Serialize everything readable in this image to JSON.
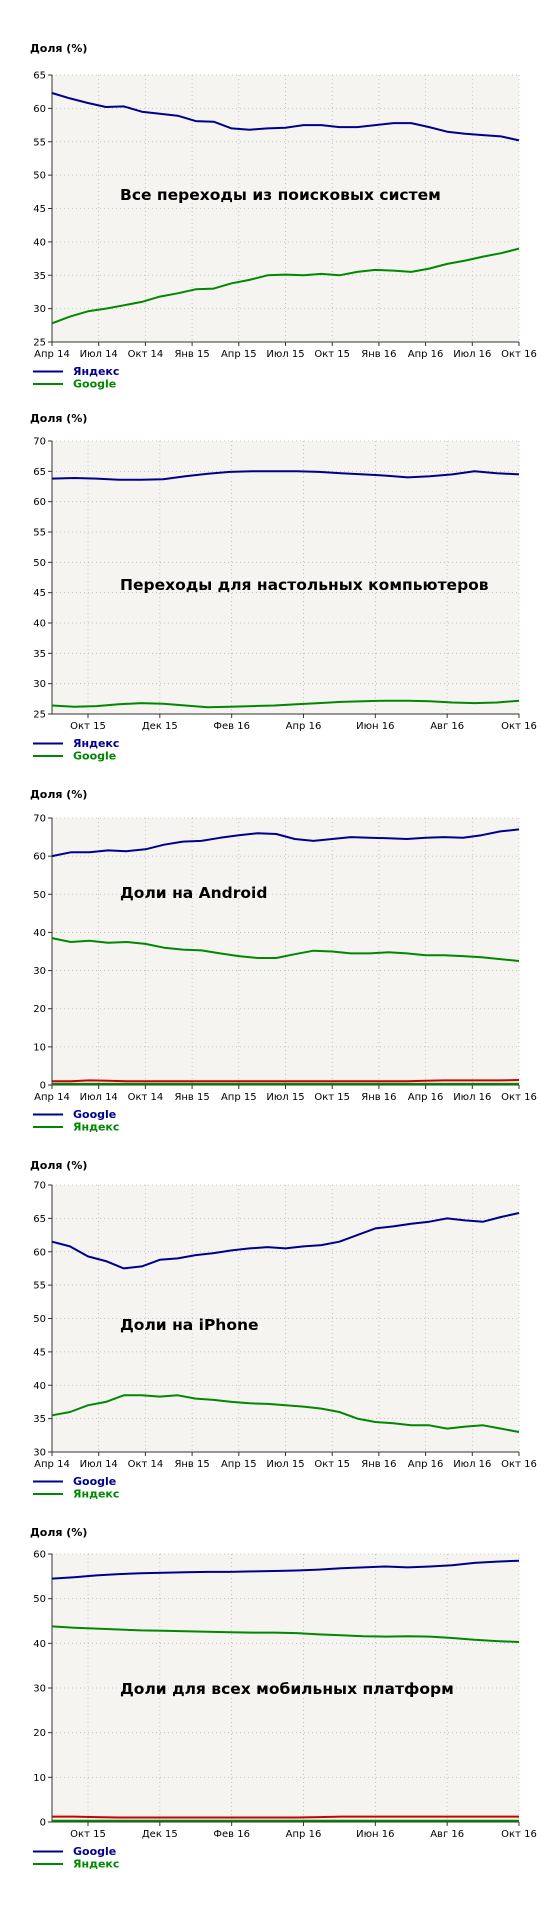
{
  "chart_data": [
    {
      "type": "line",
      "ylabel": "Доля (%)",
      "annotation": "Все переходы из поисковых систем",
      "ylim": [
        25,
        65
      ],
      "yticks": [
        25,
        30,
        35,
        40,
        45,
        50,
        55,
        60,
        65
      ],
      "xticks": [
        "Апр 14",
        "Июл 14",
        "Окт 14",
        "Янв 15",
        "Апр 15",
        "Июл 15",
        "Окт 15",
        "Янв 16",
        "Апр 16",
        "Июл 16",
        "Окт 16"
      ],
      "grid": true,
      "series": [
        {
          "name": "Яндекс",
          "color": "#00008b",
          "values": [
            62.3,
            61.5,
            60.8,
            60.2,
            60.3,
            59.5,
            59.2,
            58.9,
            58.1,
            58.0,
            57.0,
            56.8,
            57.0,
            57.1,
            57.5,
            57.5,
            57.2,
            57.2,
            57.5,
            57.8,
            57.8,
            57.2,
            56.5,
            56.2,
            56.0,
            55.8,
            55.2
          ]
        },
        {
          "name": "Google",
          "color": "#008800",
          "values": [
            27.8,
            28.8,
            29.6,
            30.0,
            30.5,
            31.0,
            31.8,
            32.3,
            32.9,
            33.0,
            33.8,
            34.3,
            35.0,
            35.1,
            35.0,
            35.2,
            35.0,
            35.5,
            35.8,
            35.7,
            35.5,
            36.0,
            36.7,
            37.2,
            37.8,
            38.3,
            39.0
          ]
        }
      ]
    },
    {
      "type": "line",
      "ylabel": "Доля (%)",
      "annotation": "Переходы для настольных компьютеров",
      "ylim": [
        25,
        70
      ],
      "yticks": [
        25,
        30,
        35,
        40,
        45,
        50,
        55,
        60,
        65,
        70
      ],
      "xticks": [
        "Окт 15",
        "Дек 15",
        "Фев 16",
        "Апр 16",
        "Июн 16",
        "Авг 16",
        "Окт 16"
      ],
      "grid": true,
      "series": [
        {
          "name": "Яндекс",
          "color": "#00008b",
          "values": [
            63.8,
            63.9,
            63.8,
            63.6,
            63.6,
            63.7,
            64.2,
            64.6,
            64.9,
            65.0,
            65.0,
            65.0,
            64.9,
            64.7,
            64.5,
            64.3,
            64.0,
            64.2,
            64.5,
            65.0,
            64.7,
            64.5
          ]
        },
        {
          "name": "Google",
          "color": "#008800",
          "values": [
            26.4,
            26.2,
            26.3,
            26.6,
            26.8,
            26.7,
            26.4,
            26.1,
            26.2,
            26.3,
            26.4,
            26.6,
            26.8,
            27.0,
            27.1,
            27.2,
            27.2,
            27.1,
            26.9,
            26.8,
            26.9,
            27.2
          ]
        }
      ]
    },
    {
      "type": "line",
      "ylabel": "Доля (%)",
      "annotation": "Доли на Android",
      "ylim": [
        0,
        70
      ],
      "yticks": [
        0,
        10,
        20,
        30,
        40,
        50,
        60,
        70
      ],
      "xticks": [
        "Апр 14",
        "Июл 14",
        "Окт 14",
        "Янв 15",
        "Апр 15",
        "Июл 15",
        "Окт 15",
        "Янв 16",
        "Апр 16",
        "Июл 16",
        "Окт 16"
      ],
      "grid": true,
      "series": [
        {
          "name": "Google",
          "color": "#00008b",
          "values": [
            60.0,
            61.0,
            61.0,
            61.5,
            61.3,
            61.8,
            63.0,
            63.8,
            64.0,
            64.8,
            65.5,
            66.0,
            65.8,
            64.5,
            64.0,
            64.5,
            65.0,
            64.8,
            64.7,
            64.5,
            64.8,
            65.0,
            64.8,
            65.5,
            66.5,
            67.0
          ]
        },
        {
          "name": "Яндекс",
          "color": "#008800",
          "values": [
            38.5,
            37.5,
            37.8,
            37.3,
            37.5,
            37.0,
            36.0,
            35.5,
            35.3,
            34.5,
            33.8,
            33.3,
            33.3,
            34.3,
            35.2,
            35.0,
            34.5,
            34.5,
            34.8,
            34.5,
            34.0,
            34.0,
            33.8,
            33.5,
            33.0,
            32.5
          ]
        },
        {
          "color": "#cc0000",
          "values": [
            1.0,
            1.0,
            1.2,
            1.1,
            1.0,
            1.0,
            1.0,
            1.0,
            1.0,
            1.0,
            1.0,
            1.0,
            1.0,
            1.0,
            1.0,
            1.0,
            1.0,
            1.0,
            1.0,
            1.0,
            1.1,
            1.2,
            1.2,
            1.2,
            1.2,
            1.3
          ]
        },
        {
          "color": "#008800",
          "values": [
            0.3,
            0.3,
            0.3,
            0.3,
            0.3,
            0.3,
            0.3,
            0.3,
            0.3,
            0.3,
            0.3,
            0.3,
            0.3,
            0.3,
            0.3,
            0.3,
            0.3,
            0.3,
            0.3,
            0.3,
            0.3,
            0.3,
            0.3,
            0.3,
            0.3,
            0.3
          ]
        }
      ]
    },
    {
      "type": "line",
      "ylabel": "Доля (%)",
      "annotation": "Доли на iPhone",
      "ylim": [
        30,
        70
      ],
      "yticks": [
        30,
        35,
        40,
        45,
        50,
        55,
        60,
        65,
        70
      ],
      "xticks": [
        "Апр 14",
        "Июл 14",
        "Окт 14",
        "Янв 15",
        "Апр 15",
        "Июл 15",
        "Окт 15",
        "Янв 16",
        "Апр 16",
        "Июл 16",
        "Окт 16"
      ],
      "grid": true,
      "series": [
        {
          "name": "Google",
          "color": "#00008b",
          "values": [
            61.5,
            60.8,
            59.3,
            58.6,
            57.5,
            57.8,
            58.8,
            59.0,
            59.5,
            59.8,
            60.2,
            60.5,
            60.7,
            60.5,
            60.8,
            61.0,
            61.5,
            62.5,
            63.5,
            63.8,
            64.2,
            64.5,
            65.0,
            64.7,
            64.5,
            65.2,
            65.8
          ]
        },
        {
          "name": "Яндекс",
          "color": "#008800",
          "values": [
            35.5,
            36.0,
            37.0,
            37.5,
            38.5,
            38.5,
            38.3,
            38.5,
            38.0,
            37.8,
            37.5,
            37.3,
            37.2,
            37.0,
            36.8,
            36.5,
            36.0,
            35.0,
            34.5,
            34.3,
            34.0,
            34.0,
            33.5,
            33.8,
            34.0,
            33.5,
            33.0
          ]
        }
      ]
    },
    {
      "type": "line",
      "ylabel": "Доля (%)",
      "annotation": "Доли для всех мобильных платформ",
      "ylim": [
        0,
        60
      ],
      "yticks": [
        0,
        10,
        20,
        30,
        40,
        50,
        60
      ],
      "xticks": [
        "Окт 15",
        "Дек 15",
        "Фев 16",
        "Апр 16",
        "Июн 16",
        "Авг 16",
        "Окт 16"
      ],
      "grid": true,
      "series": [
        {
          "name": "Google",
          "color": "#00008b",
          "values": [
            54.5,
            54.8,
            55.2,
            55.5,
            55.7,
            55.8,
            55.9,
            56.0,
            56.0,
            56.1,
            56.2,
            56.3,
            56.5,
            56.8,
            57.0,
            57.2,
            57.0,
            57.2,
            57.5,
            58.0,
            58.3,
            58.5
          ]
        },
        {
          "name": "Яндекс",
          "color": "#008800",
          "values": [
            43.8,
            43.5,
            43.3,
            43.1,
            42.9,
            42.8,
            42.7,
            42.6,
            42.5,
            42.4,
            42.4,
            42.3,
            42.0,
            41.8,
            41.6,
            41.5,
            41.6,
            41.5,
            41.2,
            40.8,
            40.5,
            40.3
          ]
        },
        {
          "color": "#cc0000",
          "values": [
            1.2,
            1.2,
            1.1,
            1.0,
            1.0,
            1.0,
            1.0,
            1.0,
            1.0,
            1.0,
            1.0,
            1.0,
            1.1,
            1.2,
            1.2,
            1.2,
            1.2,
            1.2,
            1.2,
            1.2,
            1.2,
            1.2
          ]
        },
        {
          "color": "#008800",
          "values": [
            0.3,
            0.3,
            0.3,
            0.3,
            0.3,
            0.3,
            0.3,
            0.3,
            0.3,
            0.3,
            0.3,
            0.3,
            0.3,
            0.3,
            0.3,
            0.3,
            0.3,
            0.3,
            0.3,
            0.3,
            0.3,
            0.3
          ]
        }
      ]
    }
  ]
}
